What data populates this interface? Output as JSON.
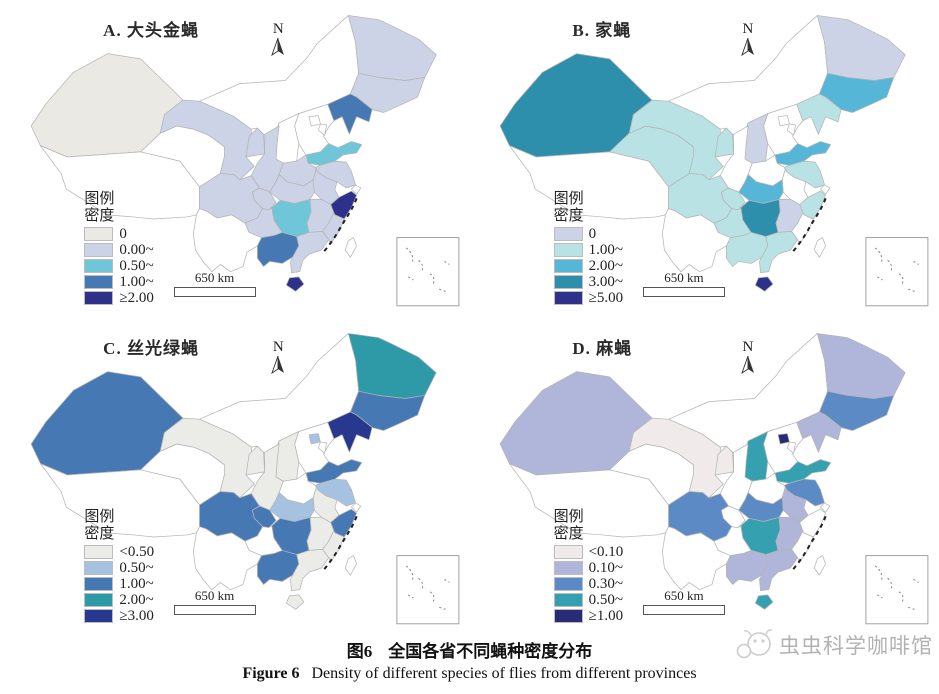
{
  "compass_label": "N",
  "scale_label": "650 km",
  "legend_title": [
    "图例",
    "密度"
  ],
  "caption": {
    "zh_label": "图6",
    "zh_text": "全国各省不同蝇种密度分布",
    "en_label": "Figure 6",
    "en_text": "Density of different species of flies from different provinces"
  },
  "watermark": "虫虫科学咖啡馆",
  "chart_data": {
    "type": "heatmap",
    "subtype": "choropleth-map-china-provinces",
    "value_name": "密度 (density)",
    "panels": [
      {
        "id": "A",
        "title": "A. 大头金蝇",
        "classes": [
          {
            "label": "0",
            "color": "#eae9e4"
          },
          {
            "label": "0.00~",
            "color": "#ccd3e6"
          },
          {
            "label": "0.50~",
            "color": "#6fc6d8"
          },
          {
            "label": "1.00~",
            "color": "#4678b4"
          },
          {
            "label": "≥2.00",
            "color": "#2d3189"
          }
        ],
        "province_class": {
          "xinjiang": 0,
          "tibet": null,
          "qinghai": null,
          "gansu": 1,
          "ningxia": 1,
          "inner_mongolia": null,
          "heilongjiang": 1,
          "jilin": 1,
          "liaoning": 3,
          "beijing": null,
          "tianjin": null,
          "hebei": null,
          "shanxi": null,
          "shaanxi": 1,
          "shandong": 2,
          "henan": 1,
          "jiangsu": 1,
          "anhui": 1,
          "shanghai": null,
          "hubei": 1,
          "chongqing": 1,
          "sichuan": 1,
          "guizhou": 1,
          "yunnan": null,
          "hunan": 2,
          "jiangxi": 1,
          "zhejiang": 4,
          "fujian": 1,
          "guangdong": 1,
          "guangxi": 3,
          "hainan": 4,
          "taiwan": null
        }
      },
      {
        "id": "B",
        "title": "B. 家蝇",
        "classes": [
          {
            "label": "0",
            "color": "#ccd3e6"
          },
          {
            "label": "1.00~",
            "color": "#b9e2e4"
          },
          {
            "label": "2.00~",
            "color": "#56b6d8"
          },
          {
            "label": "3.00~",
            "color": "#2e8fad"
          },
          {
            "label": "≥5.00",
            "color": "#2d3189"
          }
        ],
        "province_class": {
          "xinjiang": 3,
          "tibet": null,
          "qinghai": 1,
          "gansu": 1,
          "ningxia": 1,
          "inner_mongolia": null,
          "heilongjiang": 0,
          "jilin": 2,
          "liaoning": 1,
          "beijing": null,
          "tianjin": null,
          "hebei": null,
          "shanxi": 0,
          "shaanxi": null,
          "shandong": 2,
          "henan": null,
          "jiangsu": 1,
          "anhui": null,
          "shanghai": null,
          "hubei": 2,
          "chongqing": 1,
          "sichuan": 1,
          "guizhou": 1,
          "yunnan": null,
          "hunan": 3,
          "jiangxi": 0,
          "zhejiang": 1,
          "fujian": null,
          "guangdong": 1,
          "guangxi": 1,
          "hainan": 4,
          "taiwan": null
        }
      },
      {
        "id": "C",
        "title": "C. 丝光绿蝇",
        "classes": [
          {
            "label": "<0.50",
            "color": "#ebebe8"
          },
          {
            "label": "0.50~",
            "color": "#a5c3e0"
          },
          {
            "label": "1.00~",
            "color": "#4678b4"
          },
          {
            "label": "2.00~",
            "color": "#2e9aa8"
          },
          {
            "label": "≥3.00",
            "color": "#28388f"
          }
        ],
        "province_class": {
          "xinjiang": 2,
          "tibet": null,
          "qinghai": null,
          "gansu": 0,
          "ningxia": 0,
          "inner_mongolia": null,
          "heilongjiang": 3,
          "jilin": 2,
          "liaoning": 4,
          "beijing": 1,
          "tianjin": null,
          "hebei": null,
          "shanxi": 0,
          "shaanxi": 0,
          "shandong": 2,
          "henan": null,
          "jiangsu": 1,
          "anhui": 0,
          "shanghai": null,
          "hubei": 1,
          "chongqing": 2,
          "sichuan": 2,
          "guizhou": null,
          "yunnan": null,
          "hunan": 2,
          "jiangxi": 0,
          "zhejiang": 2,
          "fujian": 0,
          "guangdong": 0,
          "guangxi": 2,
          "hainan": 0,
          "taiwan": null
        }
      },
      {
        "id": "D",
        "title": "D. 麻蝇",
        "classes": [
          {
            "label": "<0.10",
            "color": "#f0ebea"
          },
          {
            "label": "0.10~",
            "color": "#b0b5da"
          },
          {
            "label": "0.30~",
            "color": "#5b8ac4"
          },
          {
            "label": "0.50~",
            "color": "#35a0b0"
          },
          {
            "label": "≥1.00",
            "color": "#272c74"
          }
        ],
        "province_class": {
          "xinjiang": 1,
          "tibet": null,
          "qinghai": null,
          "gansu": 0,
          "ningxia": 0,
          "inner_mongolia": null,
          "heilongjiang": 1,
          "jilin": 2,
          "liaoning": 1,
          "beijing": 4,
          "tianjin": null,
          "hebei": null,
          "shanxi": 3,
          "shaanxi": null,
          "shandong": 3,
          "henan": null,
          "jiangsu": 2,
          "anhui": 1,
          "shanghai": null,
          "hubei": 2,
          "chongqing": null,
          "sichuan": 2,
          "guizhou": null,
          "yunnan": null,
          "hunan": 3,
          "jiangxi": 1,
          "zhejiang": null,
          "fujian": null,
          "guangdong": 1,
          "guangxi": 1,
          "hainan": 3,
          "taiwan": null
        }
      }
    ]
  }
}
